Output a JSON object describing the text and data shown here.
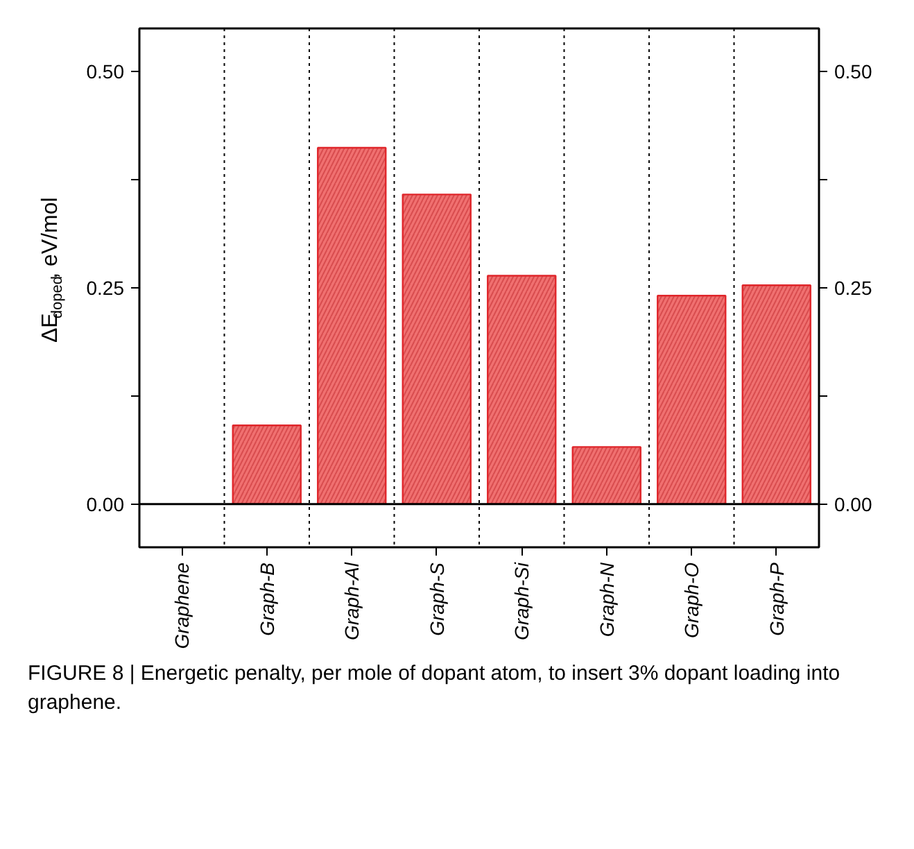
{
  "chart_data": {
    "type": "bar",
    "categories": [
      "Graphene",
      "Graph-B",
      "Graph-Al",
      "Graph-S",
      "Graph-Si",
      "Graph-N",
      "Graph-O",
      "Graph-P"
    ],
    "values": [
      0,
      0.091,
      0.412,
      0.358,
      0.264,
      0.066,
      0.241,
      0.253
    ],
    "color": "#f07070",
    "ylabel": "ΔE$_{doped}$, eV/mol",
    "ylim": [
      -0.05,
      0.55
    ],
    "yticks": [
      {
        "value": 0,
        "label": "0.00"
      },
      {
        "value": 0.125,
        "label": null
      },
      0.25,
      {
        "value": 0.375,
        "label": null
      },
      {
        "value": 0.5,
        "label": "0.50"
      }
    ],
    "y2lim": [
      -0.05,
      0.55
    ],
    "y2ticks": [
      {
        "value": 0,
        "label": "0.00"
      },
      {
        "value": 0.125,
        "label": null
      },
      0.25,
      {
        "value": 0.375,
        "label": null
      },
      {
        "value": 0.5,
        "label": "0.50"
      }
    ],
    "ref_lines": [
      {
        "axis": "y",
        "value": 0,
        "label": null,
        "color": "#000000",
        "line_style": "solid"
      }
    ],
    "grid": "x",
    "annotations": [
      "FIGURE 8 | Energetic penalty, per mole of dopant atom, to insert 3% dopant loading into graphene."
    ]
  }
}
